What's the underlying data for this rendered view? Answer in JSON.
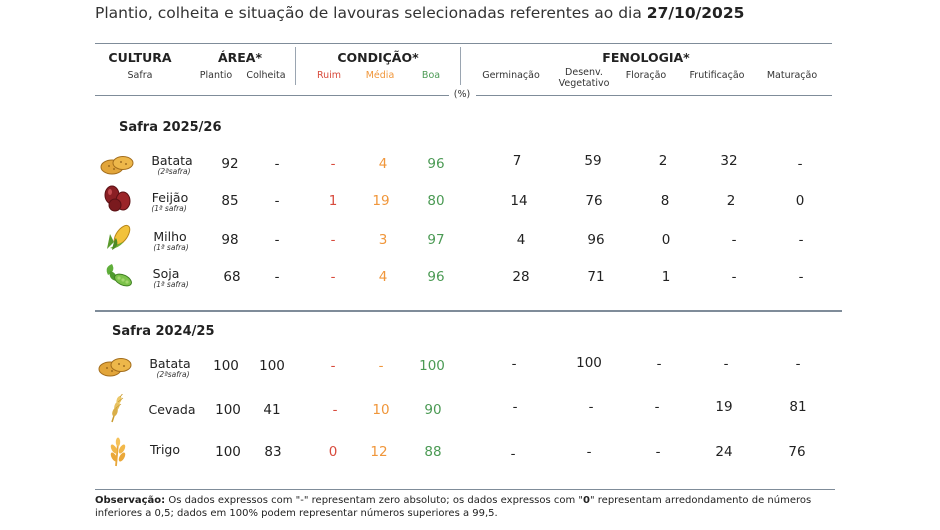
{
  "title": {
    "prefix": "Plantio, colheita e situação de lavouras selecionadas referentes ao dia ",
    "date": "27/10/2025"
  },
  "header": {
    "cultura": "CULTURA",
    "safra": "Safra",
    "area": "ÁREA*",
    "plantio": "Plantio",
    "colheita": "Colheita",
    "condicao": "CONDIÇÃO*",
    "ruim": "Ruim",
    "media": "Média",
    "boa": "Boa",
    "fenologia": "FENOLOGIA*",
    "germinacao": "Germinação",
    "desenv1": "Desenv.",
    "desenv2": "Vegetativo",
    "floracao": "Floração",
    "frutificacao": "Frutificação",
    "maturacao": "Maturação",
    "percent": "(%)"
  },
  "safra1": {
    "label": "Safra 2025/26",
    "rows": [
      {
        "icon": "potato-icon",
        "name": "Batata",
        "sub": "(2ªsafra)",
        "plantio": "92",
        "colheita": "-",
        "ruim": "-",
        "media": "4",
        "boa": "96",
        "germ": "7",
        "desenv": "59",
        "flor": "2",
        "frut": "32",
        "mat": "-"
      },
      {
        "icon": "bean-icon",
        "name": "Feijão",
        "sub": "(1ª safra)",
        "plantio": "85",
        "colheita": "-",
        "ruim": "1",
        "media": "19",
        "boa": "80",
        "germ": "14",
        "desenv": "76",
        "flor": "8",
        "frut": "2",
        "mat": "0"
      },
      {
        "icon": "corn-icon",
        "name": "Milho",
        "sub": "(1ª safra)",
        "plantio": "98",
        "colheita": "-",
        "ruim": "-",
        "media": "3",
        "boa": "97",
        "germ": "4",
        "desenv": "96",
        "flor": "0",
        "frut": "-",
        "mat": "-"
      },
      {
        "icon": "soy-icon",
        "name": "Soja",
        "sub": "(1ª safra)",
        "plantio": "68",
        "colheita": "-",
        "ruim": "-",
        "media": "4",
        "boa": "96",
        "germ": "28",
        "desenv": "71",
        "flor": "1",
        "frut": "-",
        "mat": "-"
      }
    ]
  },
  "safra2": {
    "label": "Safra 2024/25",
    "rows": [
      {
        "icon": "potato-icon",
        "name": "Batata",
        "sub": "(2ªsafra)",
        "plantio": "100",
        "colheita": "100",
        "ruim": "-",
        "media": "-",
        "boa": "100",
        "germ": "-",
        "desenv": "100",
        "flor": "-",
        "frut": "-",
        "mat": "-"
      },
      {
        "icon": "barley-icon",
        "name": "Cevada",
        "sub": "",
        "plantio": "100",
        "colheita": "41",
        "ruim": "-",
        "media": "10",
        "boa": "90",
        "germ": "-",
        "desenv": "-",
        "flor": "-",
        "frut": "19",
        "mat": "81"
      },
      {
        "icon": "wheat-icon",
        "name": "Trigo",
        "sub": "",
        "plantio": "100",
        "colheita": "83",
        "ruim": "0",
        "media": "12",
        "boa": "88",
        "germ": "-",
        "desenv": "-",
        "flor": "-",
        "frut": "24",
        "mat": "76"
      }
    ]
  },
  "observacao": {
    "label": "Observação:",
    "text1": " Os dados expressos com \"-\" representam zero absoluto; os dados expressos com \"",
    "zero": "0",
    "text2": "\" representam arredondamento de números inferiores a 0,5; dados em 100% podem representar números superiores a 99,5."
  },
  "colors": {
    "ruim": "#d84a3c",
    "media": "#f0963a",
    "boa": "#4b9a54",
    "rule": "#7f8c99"
  }
}
